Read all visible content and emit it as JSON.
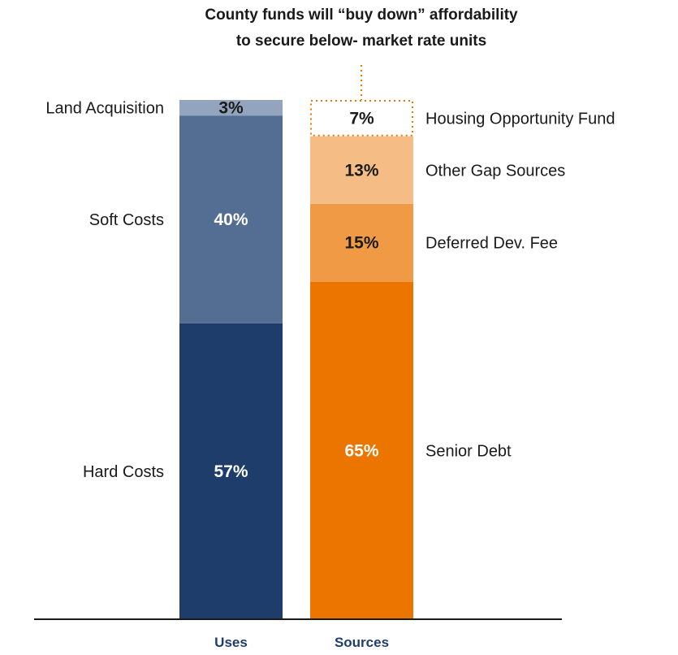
{
  "chart_data": {
    "type": "bar",
    "stacked": true,
    "annotation": [
      "County funds will “buy down” affordability",
      "to secure below- market rate units"
    ],
    "categories": [
      "Uses",
      "Sources"
    ],
    "category_color": "#1f3d6e",
    "ylim": [
      0,
      100
    ],
    "series": [
      {
        "category": "Uses",
        "segments": [
          {
            "label": "Hard Costs",
            "value": 57,
            "value_label": "57%",
            "color": "#1e3d6b",
            "text_color": "#ffffff"
          },
          {
            "label": "Soft Costs",
            "value": 40,
            "value_label": "40%",
            "color": "#546e93",
            "text_color": "#ffffff"
          },
          {
            "label": "Land Acquisition",
            "value": 3,
            "value_label": "3%",
            "color": "#93a5be",
            "text_color": "#1a1a1a"
          }
        ]
      },
      {
        "category": "Sources",
        "segments": [
          {
            "label": "Senior Debt",
            "value": 65,
            "value_label": "65%",
            "color": "#ec7500",
            "text_color": "#ffffff"
          },
          {
            "label": "Deferred Dev. Fee",
            "value": 15,
            "value_label": "15%",
            "color": "#f09a45",
            "text_color": "#1a1a1a"
          },
          {
            "label": "Other Gap Sources",
            "value": 13,
            "value_label": "13%",
            "color": "#f5bd85",
            "text_color": "#1a1a1a"
          },
          {
            "label": "Housing Opportunity Fund",
            "value": 7,
            "value_label": "7%",
            "color": "#ffffff",
            "text_color": "#1a1a1a",
            "outline": "dotted",
            "outline_color": "#ec7500"
          }
        ]
      }
    ]
  }
}
